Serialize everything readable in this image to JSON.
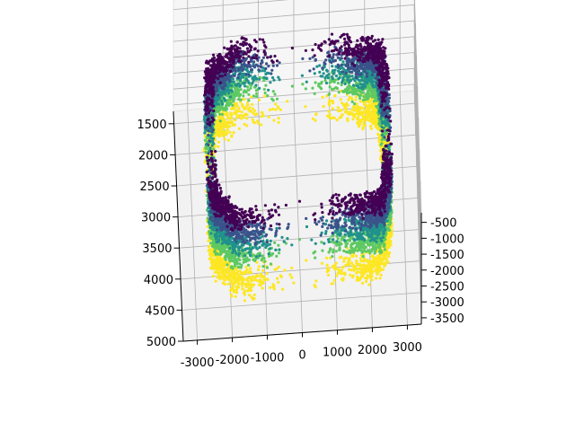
{
  "chart_data": {
    "type": "scatter",
    "projection": "3d",
    "description_colormap": "viridis",
    "colors": [
      "#440154",
      "#3b528b",
      "#21918c",
      "#5ec962",
      "#fde725"
    ],
    "x_axis": {
      "ticks": [
        -3000,
        -2000,
        -1000,
        0,
        1000,
        2000,
        3000
      ],
      "range": [
        -3400,
        3400
      ]
    },
    "y_axis": {
      "ticks": [
        1500,
        2000,
        2500,
        3000,
        3500,
        4000,
        4500,
        5000
      ],
      "range": [
        1300,
        5000
      ]
    },
    "z_axis": {
      "ticks": [
        -500,
        -1000,
        -1500,
        -2000,
        -2500,
        -3000,
        -3500
      ],
      "range": [
        -3700,
        -200
      ]
    },
    "grid": true,
    "title": "",
    "xlabel": "",
    "ylabel": "",
    "zlabel": "",
    "z_levels": [
      -700,
      -1100,
      -1500,
      -1900,
      -2400
    ]
  }
}
